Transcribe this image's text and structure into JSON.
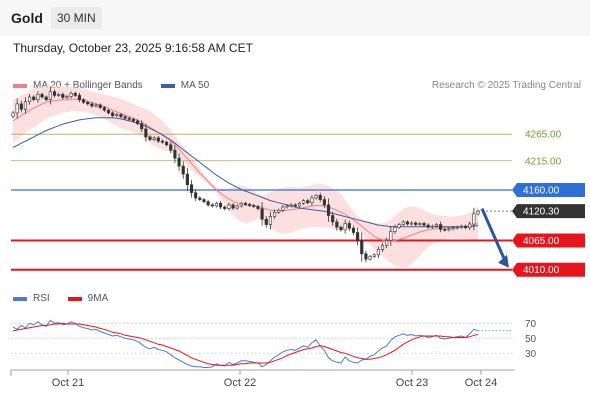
{
  "header": {
    "title": "Gold",
    "timeframe": "30 MIN"
  },
  "datetime": "Thursday, October 23, 2025 9:16:58 AM CET",
  "copyright": "Research © 2025 Trading Central",
  "colors": {
    "ma20": "#f08080",
    "bollinger": "#fbd3d3",
    "ma50": "#3b5ea8",
    "resistance": "#9ab54a",
    "pivot": "#2e6fd8",
    "support": "#e8141c",
    "price_tag": "#333333",
    "arrow": "#2b579a",
    "rsi": "#4a7bd8",
    "rsi_ma": "#e8141c",
    "candle_up": "#3f7d20",
    "candle_down": "#b22222"
  },
  "legend": {
    "main": [
      {
        "label": "MA 20 + Bollinger Bands",
        "color": "#f08080"
      },
      {
        "label": "MA 50",
        "color": "#3b5ea8"
      }
    ],
    "rsi": [
      {
        "label": "RSI",
        "color": "#4a7bd8"
      },
      {
        "label": "9MA",
        "color": "#e8141c"
      }
    ]
  },
  "chart_data": [
    {
      "type": "candlestick",
      "title": "",
      "x_ticks": [
        "Oct 21",
        "Oct 22",
        "Oct 23",
        "Oct 24"
      ],
      "y_range": [
        3985,
        4335
      ],
      "levels": [
        {
          "label": "4265.00",
          "value": 4265,
          "kind": "resistance"
        },
        {
          "label": "4215.00",
          "value": 4215,
          "kind": "resistance"
        },
        {
          "label": "4160.00",
          "value": 4160,
          "kind": "pivot"
        },
        {
          "label": "4065.00",
          "value": 4065,
          "kind": "support"
        },
        {
          "label": "4010.00",
          "value": 4010,
          "kind": "support"
        }
      ],
      "last_price": {
        "label": "4120.30",
        "value": 4120.3
      },
      "forecast_arrow": {
        "from": 4125,
        "to": 4010
      },
      "close": [
        4305,
        4322,
        4312,
        4326,
        4335,
        4330,
        4340,
        4335,
        4330,
        4345,
        4338,
        4340,
        4334,
        4336,
        4342,
        4338,
        4330,
        4325,
        4322,
        4318,
        4320,
        4315,
        4310,
        4305,
        4300,
        4302,
        4298,
        4295,
        4293,
        4290,
        4285,
        4275,
        4260,
        4255,
        4258,
        4252,
        4250,
        4245,
        4235,
        4220,
        4205,
        4190,
        4170,
        4155,
        4145,
        4142,
        4138,
        4132,
        4130,
        4135,
        4128,
        4125,
        4132,
        4126,
        4130,
        4135,
        4133,
        4131,
        4129,
        4125,
        4105,
        4095,
        4110,
        4118,
        4122,
        4128,
        4130,
        4132,
        4130,
        4135,
        4140,
        4136,
        4145,
        4150,
        4142,
        4132,
        4112,
        4100,
        4090,
        4085,
        4097,
        4088,
        4080,
        4065,
        4040,
        4030,
        4035,
        4038,
        4048,
        4056,
        4065,
        4082,
        4090,
        4095,
        4100,
        4096,
        4098,
        4095,
        4097,
        4094,
        4090,
        4092,
        4095,
        4086,
        4085,
        4087,
        4089,
        4090,
        4092,
        4089,
        4096,
        4115,
        4120
      ],
      "ma20": [
        4290,
        4295,
        4300,
        4305,
        4310,
        4314,
        4318,
        4322,
        4325,
        4327,
        4328,
        4329,
        4330,
        4330,
        4331,
        4331,
        4330,
        4329,
        4327,
        4325,
        4322,
        4320,
        4317,
        4314,
        4310,
        4307,
        4304,
        4301,
        4298,
        4295,
        4292,
        4288,
        4283,
        4278,
        4273,
        4268,
        4263,
        4258,
        4252,
        4245,
        4237,
        4228,
        4219,
        4210,
        4201,
        4192,
        4184,
        4176,
        4168,
        4160,
        4154,
        4148,
        4143,
        4139,
        4136,
        4134,
        4132,
        4131,
        4130,
        4129,
        4127,
        4124,
        4122,
        4121,
        4121,
        4121,
        4122,
        4123,
        4124,
        4125,
        4127,
        4128,
        4130,
        4131,
        4131,
        4130,
        4128,
        4125,
        4122,
        4118,
        4114,
        4109,
        4104,
        4098,
        4092,
        4085,
        4079,
        4073,
        4069,
        4066,
        4064,
        4064,
        4065,
        4067,
        4069,
        4072,
        4075,
        4078,
        4081,
        4083,
        4085,
        4086,
        4087,
        4088,
        4089,
        4089,
        4090,
        4090,
        4090,
        4091,
        4092,
        4094,
        4097
      ],
      "bb_upper": [
        4330,
        4334,
        4338,
        4342,
        4346,
        4350,
        4353,
        4355,
        4356,
        4357,
        4357,
        4356,
        4355,
        4354,
        4354,
        4353,
        4352,
        4350,
        4348,
        4346,
        4344,
        4342,
        4340,
        4338,
        4336,
        4334,
        4331,
        4328,
        4325,
        4322,
        4318,
        4315,
        4312,
        4308,
        4303,
        4297,
        4290,
        4282,
        4272,
        4262,
        4252,
        4242,
        4232,
        4222,
        4212,
        4200,
        4190,
        4180,
        4172,
        4166,
        4163,
        4162,
        4163,
        4165,
        4167,
        4168,
        4167,
        4163,
        4158,
        4152,
        4150,
        4152,
        4156,
        4159,
        4162,
        4164,
        4166,
        4166,
        4165,
        4164,
        4166,
        4167,
        4169,
        4171,
        4172,
        4170,
        4168,
        4164,
        4160,
        4152,
        4142,
        4130,
        4120,
        4110,
        4105,
        4102,
        4100,
        4098,
        4097,
        4097,
        4099,
        4105,
        4112,
        4118,
        4124,
        4128,
        4129,
        4128,
        4126,
        4122,
        4118,
        4115,
        4113,
        4112,
        4111,
        4110,
        4110,
        4111,
        4112,
        4114,
        4117,
        4122,
        4130
      ],
      "bb_lower": [
        4250,
        4256,
        4262,
        4268,
        4274,
        4278,
        4283,
        4289,
        4294,
        4297,
        4299,
        4302,
        4305,
        4306,
        4308,
        4309,
        4308,
        4308,
        4306,
        4304,
        4300,
        4298,
        4294,
        4290,
        4284,
        4280,
        4277,
        4274,
        4271,
        4268,
        4266,
        4261,
        4254,
        4248,
        4243,
        4239,
        4236,
        4234,
        4232,
        4228,
        4222,
        4214,
        4206,
        4198,
        4190,
        4184,
        4178,
        4172,
        4164,
        4154,
        4145,
        4134,
        4123,
        4113,
        4105,
        4100,
        4097,
        4099,
        4102,
        4106,
        4104,
        4096,
        4088,
        4083,
        4080,
        4078,
        4078,
        4080,
        4083,
        4086,
        4088,
        4089,
        4091,
        4091,
        4090,
        4090,
        4088,
        4086,
        4084,
        4084,
        4086,
        4088,
        4088,
        4086,
        4079,
        4068,
        4058,
        4048,
        4041,
        4035,
        4029,
        4023,
        4018,
        4016,
        4014,
        4016,
        4021,
        4028,
        4036,
        4044,
        4052,
        4057,
        4061,
        4064,
        4067,
        4068,
        4070,
        4069,
        4068,
        4068,
        4067,
        4066,
        4064
      ],
      "ma50": [
        4240,
        4244,
        4248,
        4252,
        4256,
        4260,
        4264,
        4268,
        4272,
        4275,
        4278,
        4281,
        4284,
        4286,
        4288,
        4290,
        4292,
        4293,
        4294,
        4295,
        4296,
        4296,
        4296,
        4296,
        4296,
        4295,
        4294,
        4292,
        4290,
        4288,
        4286,
        4283,
        4280,
        4276,
        4272,
        4268,
        4264,
        4259,
        4254,
        4248,
        4242,
        4236,
        4230,
        4224,
        4218,
        4212,
        4206,
        4200,
        4194,
        4188,
        4183,
        4178,
        4173,
        4169,
        4165,
        4161,
        4158,
        4155,
        4152,
        4149,
        4146,
        4143,
        4140,
        4138,
        4136,
        4134,
        4132,
        4130,
        4128,
        4126,
        4125,
        4124,
        4123,
        4122,
        4121,
        4120,
        4118,
        4116,
        4114,
        4112,
        4110,
        4108,
        4106,
        4104,
        4102,
        4100,
        4098,
        4096,
        4094,
        4093,
        4092,
        4091,
        4091,
        4091,
        4091,
        4091,
        4091,
        4091,
        4091,
        4091,
        4091,
        4091,
        4091,
        4091,
        4091,
        4091,
        4091,
        4091,
        4091,
        4091,
        4091,
        4092,
        4093
      ]
    },
    {
      "type": "line",
      "title": "RSI",
      "y_ticks": [
        "70",
        "50",
        "30"
      ],
      "y_range": [
        5,
        85
      ],
      "reference_lines": [
        70,
        50,
        30
      ],
      "rsi": [
        65,
        62,
        67,
        64,
        70,
        68,
        72,
        68,
        66,
        74,
        70,
        71,
        68,
        69,
        72,
        70,
        66,
        64,
        63,
        61,
        62,
        59,
        57,
        55,
        53,
        54,
        52,
        50,
        49,
        48,
        46,
        42,
        38,
        36,
        38,
        35,
        34,
        32,
        28,
        24,
        21,
        18,
        15,
        13,
        12,
        12,
        11,
        11,
        12,
        16,
        14,
        13,
        18,
        15,
        17,
        20,
        20,
        19,
        18,
        17,
        12,
        15,
        20,
        25,
        28,
        32,
        34,
        35,
        34,
        37,
        40,
        38,
        44,
        48,
        40,
        34,
        24,
        20,
        18,
        17,
        25,
        20,
        18,
        17,
        21,
        22,
        26,
        28,
        33,
        37,
        40,
        47,
        52,
        54,
        56,
        54,
        55,
        53,
        54,
        53,
        51,
        52,
        54,
        50,
        49,
        50,
        51,
        52,
        53,
        51,
        56,
        62,
        60
      ],
      "rsi_ma": [
        60,
        61,
        62,
        63,
        64,
        65,
        66,
        67,
        67,
        68,
        69,
        69,
        70,
        69,
        69,
        69,
        69,
        68,
        67,
        66,
        65,
        63,
        62,
        60,
        58,
        57,
        56,
        54,
        53,
        52,
        51,
        50,
        48,
        46,
        44,
        42,
        41,
        39,
        37,
        35,
        33,
        30,
        27,
        24,
        22,
        20,
        18,
        16,
        15,
        14,
        14,
        14,
        14,
        14,
        15,
        16,
        16,
        17,
        17,
        17,
        17,
        17,
        18,
        20,
        22,
        24,
        27,
        29,
        31,
        33,
        35,
        36,
        37,
        39,
        40,
        39,
        37,
        35,
        33,
        31,
        30,
        28,
        26,
        24,
        23,
        22,
        22,
        23,
        24,
        26,
        28,
        31,
        34,
        38,
        42,
        45,
        48,
        50,
        52,
        53,
        53,
        53,
        53,
        53,
        52,
        52,
        51,
        51,
        51,
        51,
        52,
        54,
        55
      ]
    }
  ]
}
